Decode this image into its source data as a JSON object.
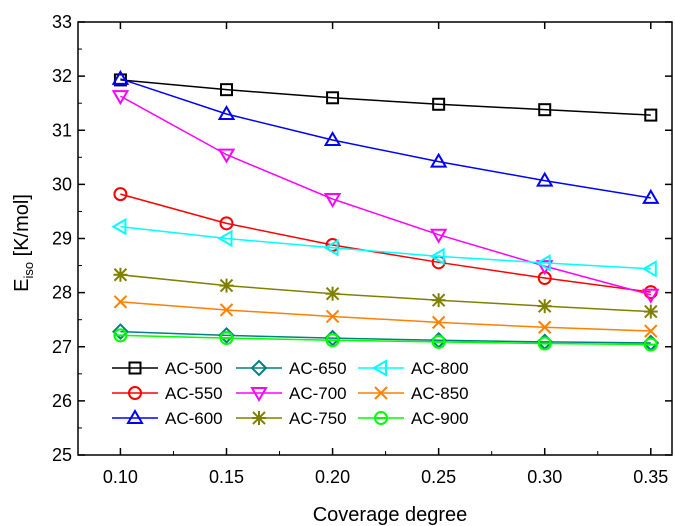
{
  "chart_data": {
    "type": "line",
    "xlabel": "Coverage degree",
    "ylabel_main": "E",
    "ylabel_sub": "iso",
    "ylabel_unit": " [K/mol]",
    "xlim": [
      0.08,
      0.36
    ],
    "ylim": [
      25,
      33
    ],
    "x": [
      0.1,
      0.15,
      0.2,
      0.25,
      0.3,
      0.35
    ],
    "x_ticks": [
      "0.10",
      "0.15",
      "0.20",
      "0.25",
      "0.30",
      "0.35"
    ],
    "y_ticks": [
      "25",
      "26",
      "27",
      "28",
      "29",
      "30",
      "31",
      "32",
      "33"
    ],
    "grid": false,
    "legend_position": "bottom-left",
    "series": [
      {
        "name": "AC-500",
        "color": "#000000",
        "marker": "square",
        "values": [
          31.93,
          31.75,
          31.6,
          31.48,
          31.38,
          31.28
        ]
      },
      {
        "name": "AC-550",
        "color": "#ff0000",
        "marker": "circle",
        "values": [
          29.82,
          29.28,
          28.88,
          28.56,
          28.27,
          28.01
        ]
      },
      {
        "name": "AC-600",
        "color": "#0000ff",
        "marker": "triangle-up",
        "values": [
          31.95,
          31.3,
          30.82,
          30.42,
          30.07,
          29.75
        ]
      },
      {
        "name": "AC-650",
        "color": "#008080",
        "marker": "diamond",
        "values": [
          27.28,
          27.21,
          27.16,
          27.12,
          27.09,
          27.07
        ]
      },
      {
        "name": "AC-700",
        "color": "#ff00ff",
        "marker": "triangle-down",
        "values": [
          31.63,
          30.55,
          29.73,
          29.07,
          28.49,
          27.96
        ]
      },
      {
        "name": "AC-750",
        "color": "#808000",
        "marker": "star",
        "values": [
          28.33,
          28.13,
          27.98,
          27.86,
          27.75,
          27.65
        ]
      },
      {
        "name": "AC-800",
        "color": "#00ffff",
        "marker": "triangle-left",
        "values": [
          29.22,
          29.0,
          28.83,
          28.67,
          28.55,
          28.44
        ]
      },
      {
        "name": "AC-850",
        "color": "#ff8000",
        "marker": "x",
        "values": [
          27.83,
          27.68,
          27.56,
          27.45,
          27.36,
          27.29
        ]
      },
      {
        "name": "AC-900",
        "color": "#00ff00",
        "marker": "circle-crossbar",
        "values": [
          27.21,
          27.16,
          27.12,
          27.09,
          27.06,
          27.04
        ]
      }
    ]
  }
}
